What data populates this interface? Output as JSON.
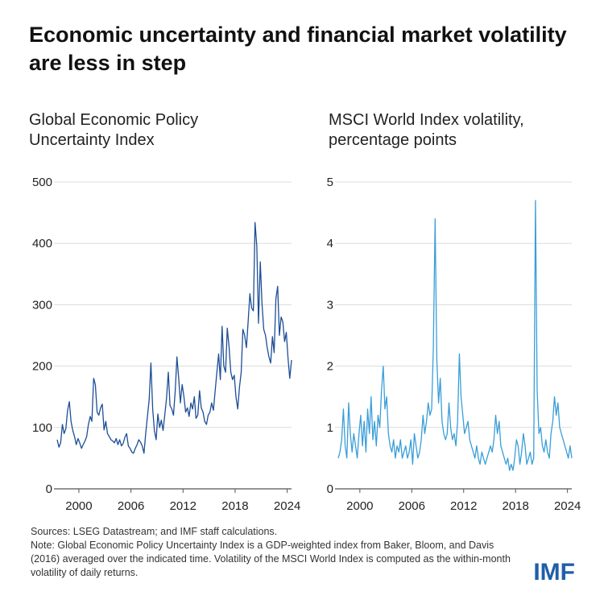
{
  "title": "Economic uncertainty and financial market volatility are less in step",
  "chart_data": [
    {
      "type": "line",
      "title": "Global Economic Policy Uncertainty Index",
      "xlabel": "",
      "ylabel": "",
      "xlim": [
        1997.5,
        2024.5
      ],
      "ylim": [
        0,
        500
      ],
      "yticks": [
        0,
        100,
        200,
        300,
        400,
        500
      ],
      "xticks": [
        2000,
        2006,
        2012,
        2018,
        2024
      ],
      "grid": true,
      "color": "#1d4e96",
      "series": [
        {
          "name": "Global Economic Policy Uncertainty Index",
          "x": [
            1997.5,
            1997.7,
            1997.9,
            1998.1,
            1998.3,
            1998.5,
            1998.7,
            1998.9,
            1999.1,
            1999.3,
            1999.5,
            1999.7,
            1999.9,
            2000.1,
            2000.3,
            2000.5,
            2000.7,
            2000.9,
            2001.1,
            2001.3,
            2001.5,
            2001.7,
            2001.9,
            2002.1,
            2002.3,
            2002.5,
            2002.7,
            2002.9,
            2003.1,
            2003.3,
            2003.5,
            2003.7,
            2003.9,
            2004.1,
            2004.3,
            2004.5,
            2004.7,
            2004.9,
            2005.1,
            2005.3,
            2005.5,
            2005.7,
            2005.9,
            2006.1,
            2006.3,
            2006.5,
            2006.7,
            2006.9,
            2007.1,
            2007.3,
            2007.5,
            2007.7,
            2007.9,
            2008.1,
            2008.3,
            2008.5,
            2008.7,
            2008.9,
            2009.1,
            2009.3,
            2009.5,
            2009.7,
            2009.9,
            2010.1,
            2010.3,
            2010.5,
            2010.7,
            2010.9,
            2011.1,
            2011.3,
            2011.5,
            2011.7,
            2011.9,
            2012.1,
            2012.3,
            2012.5,
            2012.7,
            2012.9,
            2013.1,
            2013.3,
            2013.5,
            2013.7,
            2013.9,
            2014.1,
            2014.3,
            2014.5,
            2014.7,
            2014.9,
            2015.1,
            2015.3,
            2015.5,
            2015.7,
            2015.9,
            2016.1,
            2016.3,
            2016.5,
            2016.7,
            2016.9,
            2017.1,
            2017.3,
            2017.5,
            2017.7,
            2017.9,
            2018.1,
            2018.3,
            2018.5,
            2018.7,
            2018.9,
            2019.1,
            2019.3,
            2019.5,
            2019.7,
            2019.9,
            2020.1,
            2020.3,
            2020.5,
            2020.7,
            2020.9,
            2021.1,
            2021.3,
            2021.5,
            2021.7,
            2021.9,
            2022.1,
            2022.3,
            2022.5,
            2022.7,
            2022.9,
            2023.1,
            2023.3,
            2023.5,
            2023.7,
            2023.9,
            2024.1,
            2024.3,
            2024.5
          ],
          "values": [
            80,
            68,
            75,
            105,
            90,
            98,
            128,
            142,
            110,
            95,
            85,
            72,
            82,
            75,
            66,
            72,
            78,
            85,
            105,
            118,
            110,
            180,
            170,
            125,
            120,
            132,
            138,
            96,
            110,
            90,
            85,
            80,
            78,
            75,
            82,
            72,
            80,
            70,
            74,
            84,
            90,
            70,
            66,
            60,
            58,
            66,
            72,
            80,
            76,
            70,
            58,
            90,
            118,
            145,
            205,
            130,
            95,
            80,
            122,
            100,
            112,
            95,
            120,
            148,
            190,
            136,
            130,
            120,
            160,
            215,
            180,
            140,
            170,
            150,
            125,
            132,
            118,
            140,
            130,
            150,
            115,
            120,
            160,
            132,
            125,
            110,
            105,
            120,
            125,
            140,
            128,
            160,
            190,
            220,
            178,
            265,
            200,
            190,
            262,
            232,
            190,
            178,
            185,
            150,
            130,
            165,
            190,
            260,
            250,
            230,
            272,
            318,
            295,
            290,
            434,
            395,
            270,
            370,
            300,
            260,
            250,
            230,
            215,
            205,
            248,
            222,
            310,
            330,
            250,
            280,
            272,
            240,
            255,
            212,
            180,
            210
          ]
        }
      ]
    },
    {
      "type": "line",
      "title": "MSCI World Index volatility, percentage points",
      "xlabel": "",
      "ylabel": "",
      "xlim": [
        1997.5,
        2024.5
      ],
      "ylim": [
        0,
        5
      ],
      "yticks": [
        0,
        1,
        2,
        3,
        4,
        5
      ],
      "xticks": [
        2000,
        2006,
        2012,
        2018,
        2024
      ],
      "grid": true,
      "color": "#3a9ed8",
      "series": [
        {
          "name": "MSCI World Index volatility",
          "x": [
            1997.5,
            1997.7,
            1997.9,
            1998.1,
            1998.3,
            1998.5,
            1998.7,
            1998.9,
            1999.1,
            1999.3,
            1999.5,
            1999.7,
            1999.9,
            2000.1,
            2000.3,
            2000.5,
            2000.7,
            2000.9,
            2001.1,
            2001.3,
            2001.5,
            2001.7,
            2001.9,
            2002.1,
            2002.3,
            2002.5,
            2002.7,
            2002.9,
            2003.1,
            2003.3,
            2003.5,
            2003.7,
            2003.9,
            2004.1,
            2004.3,
            2004.5,
            2004.7,
            2004.9,
            2005.1,
            2005.3,
            2005.5,
            2005.7,
            2005.9,
            2006.1,
            2006.3,
            2006.5,
            2006.7,
            2006.9,
            2007.1,
            2007.3,
            2007.5,
            2007.7,
            2007.9,
            2008.1,
            2008.3,
            2008.5,
            2008.7,
            2008.9,
            2009.1,
            2009.3,
            2009.5,
            2009.7,
            2009.9,
            2010.1,
            2010.3,
            2010.5,
            2010.7,
            2010.9,
            2011.1,
            2011.3,
            2011.5,
            2011.7,
            2011.9,
            2012.1,
            2012.3,
            2012.5,
            2012.7,
            2012.9,
            2013.1,
            2013.3,
            2013.5,
            2013.7,
            2013.9,
            2014.1,
            2014.3,
            2014.5,
            2014.7,
            2014.9,
            2015.1,
            2015.3,
            2015.5,
            2015.7,
            2015.9,
            2016.1,
            2016.3,
            2016.5,
            2016.7,
            2016.9,
            2017.1,
            2017.3,
            2017.5,
            2017.7,
            2017.9,
            2018.1,
            2018.3,
            2018.5,
            2018.7,
            2018.9,
            2019.1,
            2019.3,
            2019.5,
            2019.7,
            2019.9,
            2020.1,
            2020.3,
            2020.5,
            2020.7,
            2020.9,
            2021.1,
            2021.3,
            2021.5,
            2021.7,
            2021.9,
            2022.1,
            2022.3,
            2022.5,
            2022.7,
            2022.9,
            2023.1,
            2023.3,
            2023.5,
            2023.7,
            2023.9,
            2024.1,
            2024.3,
            2024.5
          ],
          "values": [
            0.5,
            0.6,
            0.8,
            1.3,
            0.7,
            0.5,
            1.4,
            0.9,
            0.6,
            0.9,
            0.7,
            0.5,
            0.9,
            1.2,
            0.7,
            1.1,
            0.6,
            1.3,
            0.9,
            1.5,
            0.8,
            1.1,
            0.7,
            1.2,
            1.0,
            1.6,
            2.0,
            1.3,
            1.5,
            0.9,
            0.7,
            0.6,
            0.8,
            0.5,
            0.7,
            0.6,
            0.8,
            0.5,
            0.6,
            0.7,
            0.5,
            0.6,
            0.8,
            0.4,
            0.9,
            0.7,
            0.5,
            0.6,
            0.8,
            1.2,
            0.9,
            1.1,
            1.4,
            1.2,
            1.3,
            2.3,
            4.4,
            2.1,
            1.4,
            1.8,
            1.1,
            0.9,
            0.8,
            0.9,
            1.4,
            1.0,
            0.8,
            0.9,
            0.7,
            1.1,
            2.2,
            1.5,
            1.2,
            0.9,
            1.0,
            1.1,
            0.8,
            0.7,
            0.6,
            0.5,
            0.7,
            0.5,
            0.4,
            0.6,
            0.5,
            0.4,
            0.5,
            0.6,
            0.7,
            0.6,
            0.8,
            1.2,
            0.9,
            1.1,
            0.7,
            0.6,
            0.5,
            0.4,
            0.5,
            0.3,
            0.4,
            0.3,
            0.5,
            0.8,
            0.7,
            0.4,
            0.6,
            0.9,
            0.7,
            0.4,
            0.5,
            0.6,
            0.4,
            0.5,
            4.7,
            1.6,
            0.9,
            1.0,
            0.7,
            0.6,
            0.8,
            0.6,
            0.5,
            0.9,
            1.1,
            1.5,
            1.2,
            1.4,
            1.0,
            0.9,
            0.8,
            0.7,
            0.6,
            0.5,
            0.7,
            0.5
          ]
        }
      ]
    }
  ],
  "footer": {
    "sources": "Sources: LSEG Datastream; and IMF staff calculations.",
    "note": "Note: Global Economic Policy Uncertainty Index is a GDP-weighted index from Baker, Bloom, and Davis (2016) averaged over the indicated time. Volatility of the MSCI World Index is computed as the within-month volatility of daily returns."
  },
  "logo_text": "IMF"
}
